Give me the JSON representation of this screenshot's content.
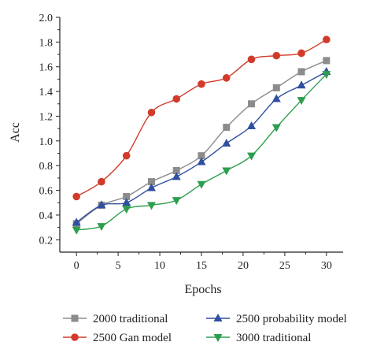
{
  "chart_data": {
    "type": "line",
    "title": "",
    "xlabel": "Epochs",
    "ylabel": "Acc",
    "xlim": [
      -2,
      32
    ],
    "ylim": [
      0.1,
      2.0
    ],
    "xticks": [
      0,
      5,
      10,
      15,
      20,
      25,
      30
    ],
    "yticks": [
      0.2,
      0.4,
      0.6,
      0.8,
      1.0,
      1.2,
      1.4,
      1.6,
      1.8,
      2.0
    ],
    "x": [
      0,
      3,
      6,
      9,
      12,
      15,
      18,
      21,
      24,
      27,
      30
    ],
    "grid": false,
    "legend_position": "bottom",
    "series": [
      {
        "name": "2000 traditional",
        "color": "#8c8c8c",
        "marker": "square",
        "values": [
          0.33,
          0.48,
          0.55,
          0.67,
          0.76,
          0.88,
          1.11,
          1.3,
          1.43,
          1.56,
          1.65
        ]
      },
      {
        "name": "2500 Gan model",
        "color": "#d23b2b",
        "marker": "circle",
        "values": [
          0.55,
          0.67,
          0.88,
          1.23,
          1.34,
          1.46,
          1.51,
          1.66,
          1.69,
          1.71,
          1.82
        ]
      },
      {
        "name": "2500 probability model",
        "color": "#2f4f9f",
        "marker": "triangle-up",
        "values": [
          0.34,
          0.48,
          0.5,
          0.62,
          0.71,
          0.83,
          0.98,
          1.12,
          1.34,
          1.45,
          1.56
        ]
      },
      {
        "name": "3000 traditional",
        "color": "#2e9e4e",
        "marker": "triangle-down",
        "values": [
          0.28,
          0.31,
          0.45,
          0.48,
          0.52,
          0.65,
          0.76,
          0.88,
          1.11,
          1.33,
          1.54
        ]
      }
    ]
  }
}
